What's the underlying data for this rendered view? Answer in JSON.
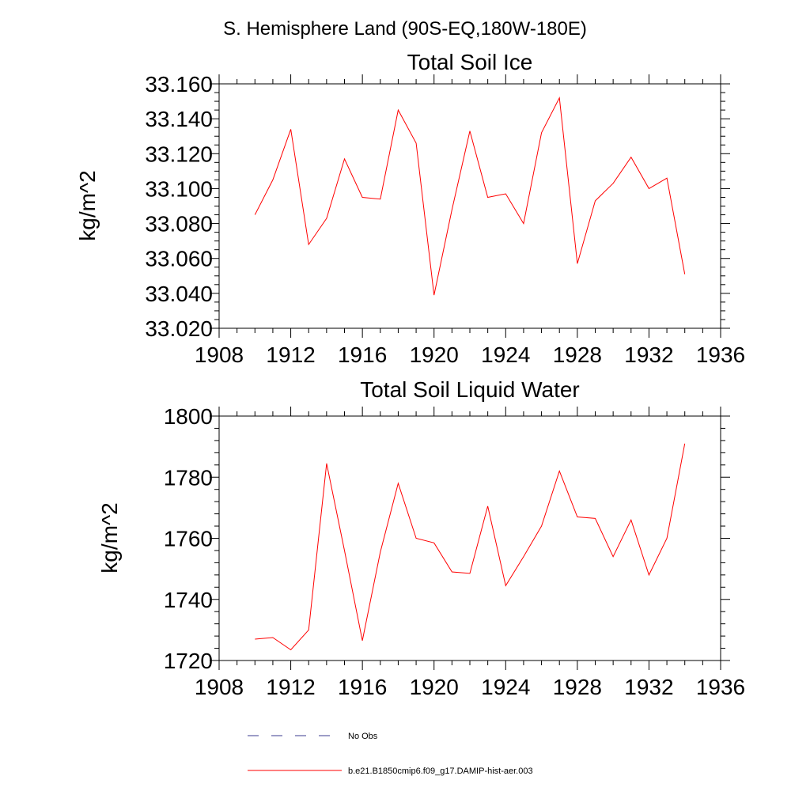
{
  "main_title": "S. Hemisphere Land (90S-EQ,180W-180E)",
  "colors": {
    "series": "#ff0000",
    "no_obs": "#3b3b8f",
    "axis": "#000000"
  },
  "legend": {
    "no_obs_label": "No Obs",
    "series_label": "b.e21.B1850cmip6.f09_g17.DAMIP-hist-aer.003"
  },
  "chart_data": [
    {
      "type": "line",
      "title": "Total Soil Ice",
      "xlabel": "",
      "ylabel": "kg/m^2",
      "xlim": [
        1908,
        1936
      ],
      "ylim": [
        33.02,
        33.16
      ],
      "xticks": [
        "1908",
        "1912",
        "1916",
        "1920",
        "1924",
        "1928",
        "1932",
        "1936"
      ],
      "yticks": [
        "33.020",
        "33.040",
        "33.060",
        "33.080",
        "33.100",
        "33.120",
        "33.140",
        "33.160"
      ],
      "x": [
        1910,
        1911,
        1912,
        1913,
        1914,
        1915,
        1916,
        1917,
        1918,
        1919,
        1920,
        1921,
        1922,
        1923,
        1924,
        1925,
        1926,
        1927,
        1928,
        1929,
        1930,
        1931,
        1932,
        1933,
        1934
      ],
      "series": [
        {
          "name": "b.e21.B1850cmip6.f09_g17.DAMIP-hist-aer.003",
          "values": [
            33.085,
            33.105,
            33.134,
            33.068,
            33.083,
            33.117,
            33.095,
            33.094,
            33.145,
            33.126,
            33.039,
            33.088,
            33.133,
            33.095,
            33.097,
            33.08,
            33.132,
            33.152,
            33.057,
            33.093,
            33.103,
            33.118,
            33.1,
            33.106,
            33.051
          ]
        }
      ]
    },
    {
      "type": "line",
      "title": "Total Soil Liquid Water",
      "xlabel": "",
      "ylabel": "kg/m^2",
      "xlim": [
        1908,
        1936
      ],
      "ylim": [
        1720,
        1800
      ],
      "xticks": [
        "1908",
        "1912",
        "1916",
        "1920",
        "1924",
        "1928",
        "1932",
        "1936"
      ],
      "yticks": [
        "1720",
        "1740",
        "1760",
        "1780",
        "1800"
      ],
      "x": [
        1910,
        1911,
        1912,
        1913,
        1914,
        1915,
        1916,
        1917,
        1918,
        1919,
        1920,
        1921,
        1922,
        1923,
        1924,
        1925,
        1926,
        1927,
        1928,
        1929,
        1930,
        1931,
        1932,
        1933,
        1934
      ],
      "series": [
        {
          "name": "b.e21.B1850cmip6.f09_g17.DAMIP-hist-aer.003",
          "values": [
            1727,
            1727.5,
            1723.5,
            1730,
            1784.5,
            1756,
            1726.5,
            1755.5,
            1778,
            1760,
            1758.5,
            1749,
            1748.5,
            1770.5,
            1744.5,
            1754,
            1764,
            1782,
            1767,
            1766.5,
            1754,
            1766,
            1748,
            1760,
            1791
          ]
        }
      ]
    }
  ]
}
